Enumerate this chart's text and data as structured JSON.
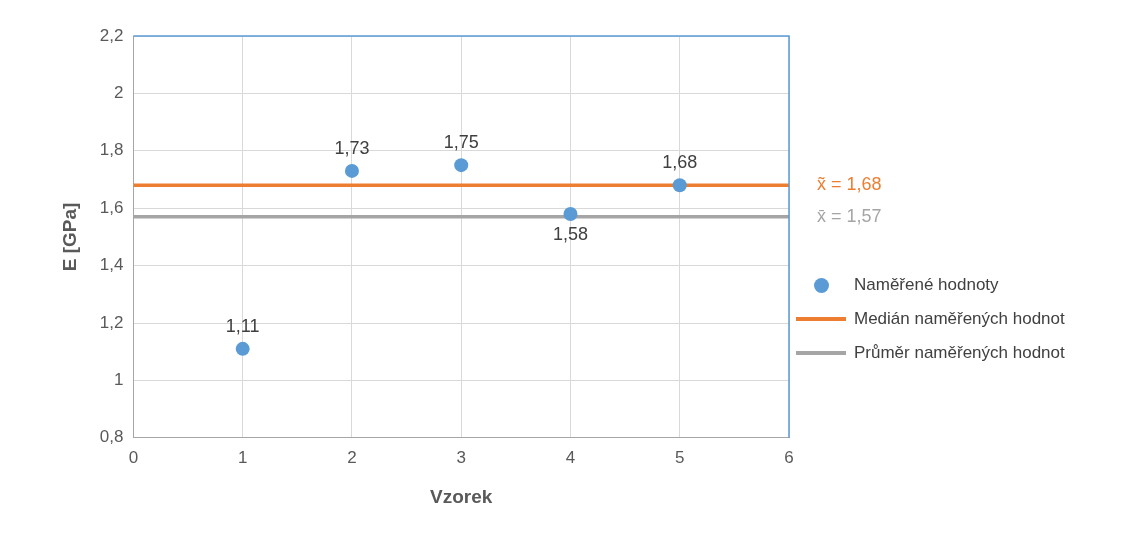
{
  "chart_data": {
    "type": "scatter",
    "xlabel": "Vzorek",
    "ylabel": "E [GPa]",
    "xlim": [
      0,
      6
    ],
    "xticks": [
      0,
      1,
      2,
      3,
      4,
      5,
      6
    ],
    "ylim": [
      0.8,
      2.2
    ],
    "yticks": [
      {
        "value": 0.8,
        "label": "0,8"
      },
      1,
      {
        "value": 1.2,
        "label": "1,2"
      },
      {
        "value": 1.4,
        "label": "1,4"
      },
      {
        "value": 1.6,
        "label": "1,6"
      },
      {
        "value": 1.8,
        "label": "1,8"
      },
      2,
      {
        "value": 2.2,
        "label": "2,2"
      }
    ],
    "series": [
      {
        "name": "Naměřené hodnoty",
        "marker": "circle",
        "color": "#5b9bd5",
        "x": [
          1,
          2,
          3,
          4,
          5
        ],
        "values": [
          1.11,
          1.73,
          1.75,
          1.58,
          1.68
        ],
        "value_labels": [
          "1,11",
          "1,73",
          "1,75",
          "1,58",
          "1,68"
        ]
      },
      {
        "name": "Medián naměřených hodnot",
        "type": "line",
        "marker": "none",
        "color": "#ed7d31",
        "x": [
          0,
          6
        ],
        "values": [
          1.68,
          1.68
        ]
      },
      {
        "name": "Průměr naměřených hodnot",
        "type": "line",
        "marker": "none",
        "color": "#a5a5a5",
        "x": [
          0,
          6
        ],
        "values": [
          1.57,
          1.57
        ]
      }
    ],
    "annotations": [
      {
        "text": "x̃ = 1,68",
        "x": 6,
        "y": 1.68
      },
      {
        "text": "x̄ = 1,57",
        "x": 6,
        "y": 1.57
      }
    ],
    "grid": true,
    "legend": "right"
  }
}
